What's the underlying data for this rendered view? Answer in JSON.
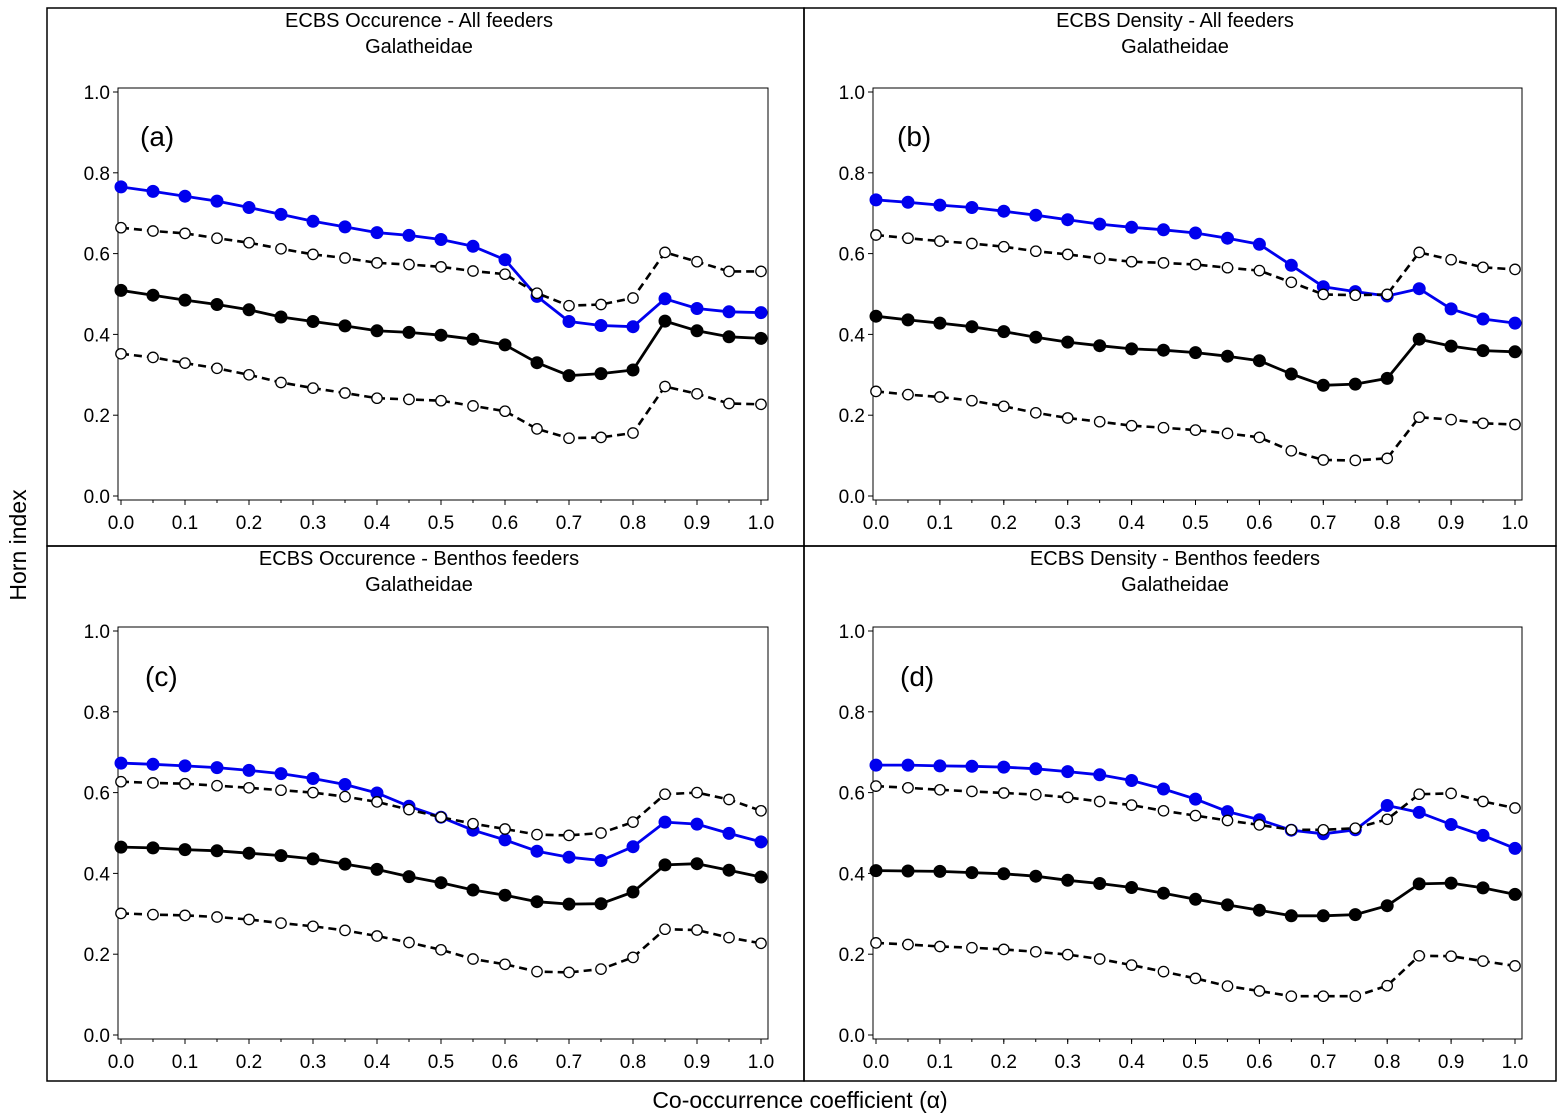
{
  "figure": {
    "ylabel": "Horn index",
    "xlabel": "Co-occurrence coefficient (α)"
  },
  "chart_data": [
    {
      "type": "line",
      "title": "ECBS Occurence - All feeders",
      "subtitle": "Galatheidae",
      "panel_label": "(a)",
      "x": [
        0.0,
        0.05,
        0.1,
        0.15,
        0.2,
        0.25,
        0.3,
        0.35,
        0.4,
        0.45,
        0.5,
        0.55,
        0.6,
        0.65,
        0.7,
        0.75,
        0.8,
        0.85,
        0.9,
        0.95,
        1.0
      ],
      "x_ticks": [
        "0.0",
        "0.1",
        "0.2",
        "0.3",
        "0.4",
        "0.5",
        "0.6",
        "0.7",
        "0.8",
        "0.9",
        "1.0"
      ],
      "y_ticks": [
        "0.0",
        "0.2",
        "0.4",
        "0.6",
        "0.8",
        "1.0"
      ],
      "xlim": [
        0,
        1
      ],
      "ylim": [
        0,
        1
      ],
      "series": [
        {
          "style": "blue-solid-filled",
          "color": "#0000ee",
          "values": [
            0.765,
            0.754,
            0.742,
            0.73,
            0.714,
            0.697,
            0.68,
            0.666,
            0.652,
            0.645,
            0.635,
            0.618,
            0.585,
            0.494,
            0.432,
            0.422,
            0.419,
            0.488,
            0.464,
            0.456,
            0.454
          ]
        },
        {
          "style": "black-dashed-open",
          "color": "#000000",
          "values": [
            0.664,
            0.656,
            0.65,
            0.638,
            0.627,
            0.612,
            0.598,
            0.589,
            0.577,
            0.573,
            0.567,
            0.557,
            0.549,
            0.502,
            0.471,
            0.474,
            0.49,
            0.603,
            0.58,
            0.556,
            0.556
          ]
        },
        {
          "style": "black-solid-filled",
          "color": "#000000",
          "values": [
            0.509,
            0.497,
            0.485,
            0.474,
            0.461,
            0.443,
            0.432,
            0.421,
            0.409,
            0.405,
            0.398,
            0.388,
            0.374,
            0.33,
            0.298,
            0.303,
            0.312,
            0.433,
            0.409,
            0.394,
            0.39
          ]
        },
        {
          "style": "black-dashed-open",
          "color": "#000000",
          "values": [
            0.352,
            0.343,
            0.329,
            0.316,
            0.3,
            0.281,
            0.267,
            0.255,
            0.242,
            0.239,
            0.236,
            0.223,
            0.21,
            0.166,
            0.143,
            0.145,
            0.156,
            0.271,
            0.253,
            0.229,
            0.227
          ]
        }
      ]
    },
    {
      "type": "line",
      "title": "ECBS Density - All feeders",
      "subtitle": "Galatheidae",
      "panel_label": "(b)",
      "x": [
        0.0,
        0.05,
        0.1,
        0.15,
        0.2,
        0.25,
        0.3,
        0.35,
        0.4,
        0.45,
        0.5,
        0.55,
        0.6,
        0.65,
        0.7,
        0.75,
        0.8,
        0.85,
        0.9,
        0.95,
        1.0
      ],
      "x_ticks": [
        "0.0",
        "0.1",
        "0.2",
        "0.3",
        "0.4",
        "0.5",
        "0.6",
        "0.7",
        "0.8",
        "0.9",
        "1.0"
      ],
      "y_ticks": [
        "0.0",
        "0.2",
        "0.4",
        "0.6",
        "0.8",
        "1.0"
      ],
      "xlim": [
        0,
        1
      ],
      "ylim": [
        0,
        1
      ],
      "series": [
        {
          "style": "blue-solid-filled",
          "color": "#0000ee",
          "values": [
            0.733,
            0.727,
            0.72,
            0.714,
            0.705,
            0.695,
            0.684,
            0.673,
            0.665,
            0.659,
            0.651,
            0.638,
            0.623,
            0.571,
            0.518,
            0.506,
            0.495,
            0.513,
            0.463,
            0.438,
            0.428
          ]
        },
        {
          "style": "black-dashed-open",
          "color": "#000000",
          "values": [
            0.646,
            0.638,
            0.631,
            0.625,
            0.617,
            0.606,
            0.598,
            0.588,
            0.58,
            0.577,
            0.573,
            0.565,
            0.558,
            0.529,
            0.499,
            0.497,
            0.499,
            0.603,
            0.585,
            0.566,
            0.561
          ]
        },
        {
          "style": "black-solid-filled",
          "color": "#000000",
          "values": [
            0.445,
            0.436,
            0.428,
            0.419,
            0.407,
            0.393,
            0.381,
            0.372,
            0.364,
            0.361,
            0.355,
            0.346,
            0.335,
            0.302,
            0.274,
            0.277,
            0.291,
            0.388,
            0.371,
            0.36,
            0.357
          ]
        },
        {
          "style": "black-dashed-open",
          "color": "#000000",
          "values": [
            0.259,
            0.251,
            0.245,
            0.236,
            0.222,
            0.206,
            0.193,
            0.184,
            0.174,
            0.169,
            0.163,
            0.155,
            0.145,
            0.112,
            0.089,
            0.088,
            0.093,
            0.195,
            0.189,
            0.18,
            0.177
          ]
        }
      ]
    },
    {
      "type": "line",
      "title": "ECBS Occurence - Benthos feeders",
      "subtitle": "Galatheidae",
      "panel_label": "(c)",
      "x": [
        0.0,
        0.05,
        0.1,
        0.15,
        0.2,
        0.25,
        0.3,
        0.35,
        0.4,
        0.45,
        0.5,
        0.55,
        0.6,
        0.65,
        0.7,
        0.75,
        0.8,
        0.85,
        0.9,
        0.95,
        1.0
      ],
      "x_ticks": [
        "0.0",
        "0.1",
        "0.2",
        "0.3",
        "0.4",
        "0.5",
        "0.6",
        "0.7",
        "0.8",
        "0.9",
        "1.0"
      ],
      "y_ticks": [
        "0.0",
        "0.2",
        "0.4",
        "0.6",
        "0.8",
        "1.0"
      ],
      "xlim": [
        0,
        1
      ],
      "ylim": [
        0,
        1
      ],
      "series": [
        {
          "style": "blue-solid-filled",
          "color": "#0000ee",
          "values": [
            0.673,
            0.67,
            0.666,
            0.662,
            0.655,
            0.647,
            0.635,
            0.62,
            0.599,
            0.566,
            0.539,
            0.507,
            0.483,
            0.455,
            0.44,
            0.432,
            0.466,
            0.527,
            0.522,
            0.499,
            0.478
          ]
        },
        {
          "style": "black-dashed-open",
          "color": "#000000",
          "values": [
            0.627,
            0.624,
            0.622,
            0.617,
            0.612,
            0.606,
            0.6,
            0.59,
            0.577,
            0.558,
            0.539,
            0.523,
            0.51,
            0.496,
            0.494,
            0.5,
            0.527,
            0.596,
            0.6,
            0.583,
            0.555
          ]
        },
        {
          "style": "black-solid-filled",
          "color": "#000000",
          "values": [
            0.465,
            0.463,
            0.459,
            0.456,
            0.45,
            0.444,
            0.436,
            0.423,
            0.41,
            0.392,
            0.377,
            0.359,
            0.346,
            0.33,
            0.324,
            0.325,
            0.354,
            0.421,
            0.424,
            0.408,
            0.391
          ]
        },
        {
          "style": "black-dashed-open",
          "color": "#000000",
          "values": [
            0.301,
            0.298,
            0.296,
            0.292,
            0.286,
            0.277,
            0.269,
            0.259,
            0.245,
            0.229,
            0.211,
            0.188,
            0.175,
            0.157,
            0.155,
            0.163,
            0.192,
            0.262,
            0.26,
            0.241,
            0.227
          ]
        }
      ]
    },
    {
      "type": "line",
      "title": "ECBS Density - Benthos feeders",
      "subtitle": "Galatheidae",
      "panel_label": "(d)",
      "x": [
        0.0,
        0.05,
        0.1,
        0.15,
        0.2,
        0.25,
        0.3,
        0.35,
        0.4,
        0.45,
        0.5,
        0.55,
        0.6,
        0.65,
        0.7,
        0.75,
        0.8,
        0.85,
        0.9,
        0.95,
        1.0
      ],
      "x_ticks": [
        "0.0",
        "0.1",
        "0.2",
        "0.3",
        "0.4",
        "0.5",
        "0.6",
        "0.7",
        "0.8",
        "0.9",
        "1.0"
      ],
      "y_ticks": [
        "0.0",
        "0.2",
        "0.4",
        "0.6",
        "0.8",
        "1.0"
      ],
      "xlim": [
        0,
        1
      ],
      "ylim": [
        0,
        1
      ],
      "series": [
        {
          "style": "blue-solid-filled",
          "color": "#0000ee",
          "values": [
            0.668,
            0.668,
            0.666,
            0.665,
            0.663,
            0.659,
            0.652,
            0.644,
            0.63,
            0.609,
            0.584,
            0.553,
            0.533,
            0.507,
            0.498,
            0.508,
            0.568,
            0.551,
            0.521,
            0.494,
            0.462
          ]
        },
        {
          "style": "black-dashed-open",
          "color": "#000000",
          "values": [
            0.616,
            0.612,
            0.607,
            0.603,
            0.599,
            0.595,
            0.588,
            0.578,
            0.569,
            0.555,
            0.543,
            0.531,
            0.52,
            0.508,
            0.508,
            0.512,
            0.534,
            0.596,
            0.598,
            0.578,
            0.562
          ]
        },
        {
          "style": "black-solid-filled",
          "color": "#000000",
          "values": [
            0.407,
            0.406,
            0.405,
            0.402,
            0.399,
            0.393,
            0.383,
            0.375,
            0.365,
            0.351,
            0.336,
            0.322,
            0.309,
            0.295,
            0.295,
            0.298,
            0.32,
            0.374,
            0.376,
            0.364,
            0.348
          ]
        },
        {
          "style": "black-dashed-open",
          "color": "#000000",
          "values": [
            0.228,
            0.224,
            0.219,
            0.216,
            0.212,
            0.206,
            0.199,
            0.188,
            0.173,
            0.157,
            0.14,
            0.121,
            0.109,
            0.096,
            0.096,
            0.096,
            0.122,
            0.196,
            0.195,
            0.183,
            0.171
          ]
        }
      ]
    }
  ]
}
